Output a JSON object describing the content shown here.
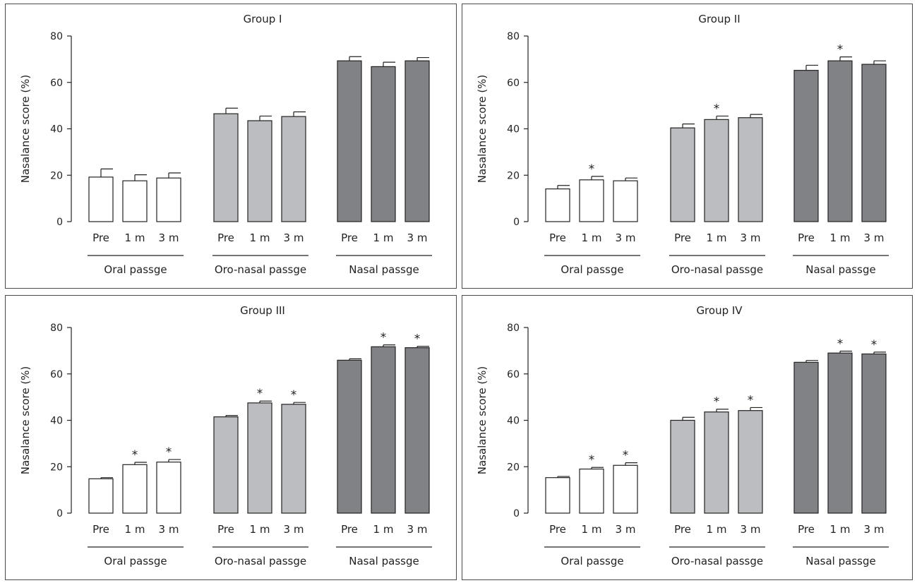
{
  "chart_data": [
    {
      "type": "bar",
      "title": "Group I",
      "ylabel": "Nasalance score (%)",
      "ylim": [
        0,
        80
      ],
      "yticks": [
        0,
        20,
        40,
        60,
        80
      ],
      "categories": [
        "Pre",
        "1 m",
        "3 m"
      ],
      "groups": [
        {
          "name": "Oral passge",
          "color": "#ffffff",
          "values": [
            19.2,
            17.6,
            18.8
          ],
          "errors": [
            3.5,
            2.6,
            2.2
          ],
          "significant": [
            false,
            false,
            false
          ]
        },
        {
          "name": "Oro-nasal passge",
          "color": "#bcbdc0",
          "values": [
            46.5,
            43.5,
            45.3
          ],
          "errors": [
            2.4,
            2.0,
            2.0
          ],
          "significant": [
            false,
            false,
            false
          ]
        },
        {
          "name": "Nasal passge",
          "color": "#808285",
          "values": [
            69.3,
            66.8,
            69.3
          ],
          "errors": [
            1.8,
            1.9,
            1.4
          ],
          "significant": [
            false,
            false,
            false
          ]
        }
      ],
      "significance_marker": "*"
    },
    {
      "type": "bar",
      "title": "Group II",
      "ylabel": "Nasalance score (%)",
      "ylim": [
        0,
        80
      ],
      "yticks": [
        0,
        20,
        40,
        60,
        80
      ],
      "categories": [
        "Pre",
        "1 m",
        "3 m"
      ],
      "groups": [
        {
          "name": "Oral passge",
          "color": "#ffffff",
          "values": [
            14.1,
            18.0,
            17.6
          ],
          "errors": [
            1.5,
            1.5,
            1.2
          ],
          "significant": [
            false,
            true,
            false
          ]
        },
        {
          "name": "Oro-nasal passge",
          "color": "#bcbdc0",
          "values": [
            40.4,
            44.0,
            44.8
          ],
          "errors": [
            1.7,
            1.5,
            1.4
          ],
          "significant": [
            false,
            true,
            false
          ]
        },
        {
          "name": "Nasal passge",
          "color": "#808285",
          "values": [
            65.2,
            69.3,
            67.8
          ],
          "errors": [
            2.2,
            1.7,
            1.5
          ],
          "significant": [
            false,
            true,
            false
          ]
        }
      ],
      "significance_marker": "*"
    },
    {
      "type": "bar",
      "title": "Group III",
      "ylabel": "Nasalance score (%)",
      "ylim": [
        0,
        80
      ],
      "yticks": [
        0,
        20,
        40,
        60,
        80
      ],
      "categories": [
        "Pre",
        "1 m",
        "3 m"
      ],
      "groups": [
        {
          "name": "Oral passge",
          "color": "#ffffff",
          "values": [
            14.8,
            20.9,
            22.0
          ],
          "errors": [
            0.5,
            1.0,
            1.1
          ],
          "significant": [
            false,
            true,
            true
          ]
        },
        {
          "name": "Oro-nasal passge",
          "color": "#bcbdc0",
          "values": [
            41.5,
            47.5,
            46.9
          ],
          "errors": [
            0.6,
            0.8,
            0.8
          ],
          "significant": [
            false,
            true,
            true
          ]
        },
        {
          "name": "Nasal passge",
          "color": "#808285",
          "values": [
            65.9,
            71.7,
            71.3
          ],
          "errors": [
            0.6,
            0.8,
            0.6
          ],
          "significant": [
            false,
            true,
            true
          ]
        }
      ],
      "significance_marker": "*"
    },
    {
      "type": "bar",
      "title": "Group IV",
      "ylabel": "Nasalance score (%)",
      "ylim": [
        0,
        80
      ],
      "yticks": [
        0,
        20,
        40,
        60,
        80
      ],
      "categories": [
        "Pre",
        "1 m",
        "3 m"
      ],
      "groups": [
        {
          "name": "Oral passge",
          "color": "#ffffff",
          "values": [
            15.3,
            19.0,
            20.6
          ],
          "errors": [
            0.5,
            0.7,
            1.1
          ],
          "significant": [
            false,
            true,
            true
          ]
        },
        {
          "name": "Oro-nasal passge",
          "color": "#bcbdc0",
          "values": [
            40.0,
            43.6,
            44.2
          ],
          "errors": [
            1.3,
            1.2,
            1.3
          ],
          "significant": [
            false,
            true,
            true
          ]
        },
        {
          "name": "Nasal passge",
          "color": "#808285",
          "values": [
            65.0,
            69.0,
            68.6
          ],
          "errors": [
            0.8,
            0.8,
            0.8
          ],
          "significant": [
            false,
            true,
            true
          ]
        }
      ],
      "significance_marker": "*"
    }
  ]
}
